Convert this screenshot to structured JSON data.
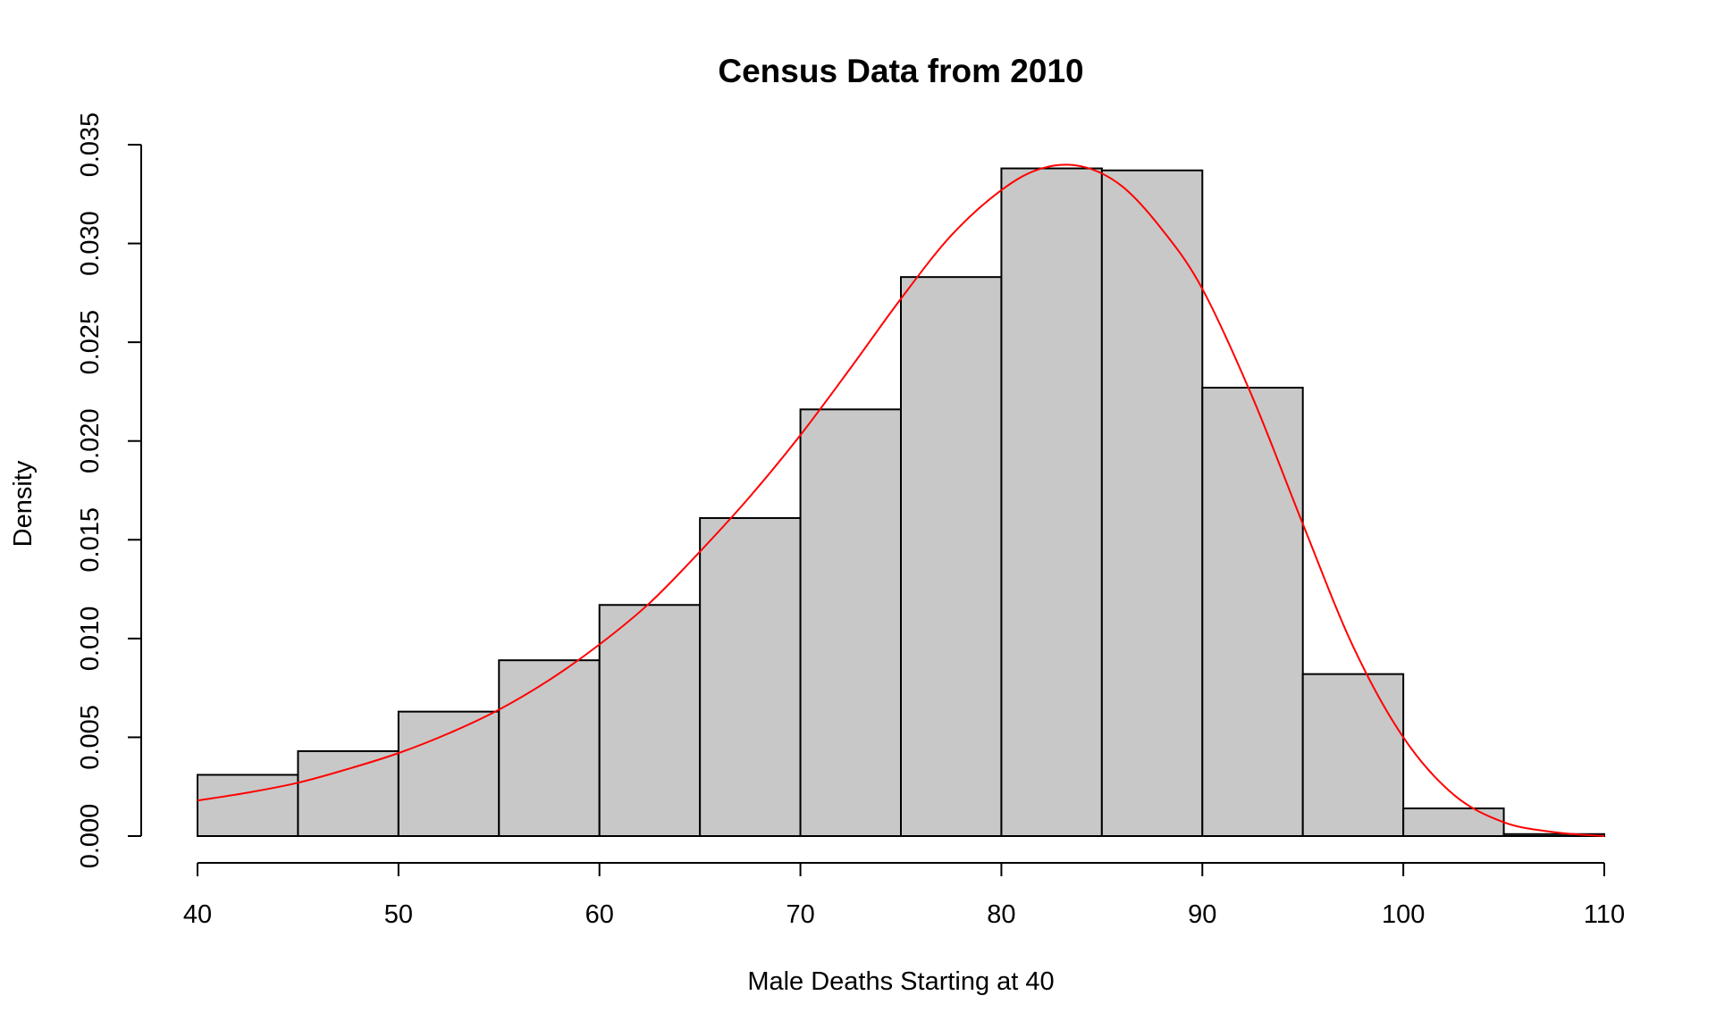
{
  "colors": {
    "bar_fill": "#c8c8c8",
    "bar_stroke": "#000000",
    "curve": "#ff0000",
    "background": "#ffffff"
  },
  "chart_data": {
    "type": "bar",
    "title": "Census Data from 2010",
    "xlabel": "Male Deaths Starting at 40",
    "ylabel": "Density",
    "xlim": [
      40,
      110
    ],
    "ylim": [
      0,
      0.035
    ],
    "x_ticks": [
      40,
      50,
      60,
      70,
      80,
      90,
      100,
      110
    ],
    "x_tick_labels": [
      "40",
      "50",
      "60",
      "70",
      "80",
      "90",
      "100",
      "110"
    ],
    "y_ticks": [
      0,
      0.005,
      0.01,
      0.015,
      0.02,
      0.025,
      0.03,
      0.035
    ],
    "y_tick_labels": [
      "0.000",
      "0.005",
      "0.010",
      "0.015",
      "0.020",
      "0.025",
      "0.030",
      "0.035"
    ],
    "bins": [
      {
        "start": 40,
        "end": 45,
        "density": 0.0031
      },
      {
        "start": 45,
        "end": 50,
        "density": 0.0043
      },
      {
        "start": 50,
        "end": 55,
        "density": 0.0063
      },
      {
        "start": 55,
        "end": 60,
        "density": 0.0089
      },
      {
        "start": 60,
        "end": 65,
        "density": 0.0117
      },
      {
        "start": 65,
        "end": 70,
        "density": 0.0161
      },
      {
        "start": 70,
        "end": 75,
        "density": 0.0216
      },
      {
        "start": 75,
        "end": 80,
        "density": 0.0283
      },
      {
        "start": 80,
        "end": 85,
        "density": 0.0338
      },
      {
        "start": 85,
        "end": 90,
        "density": 0.0337
      },
      {
        "start": 90,
        "end": 95,
        "density": 0.0227
      },
      {
        "start": 95,
        "end": 100,
        "density": 0.0082
      },
      {
        "start": 100,
        "end": 105,
        "density": 0.0014
      },
      {
        "start": 105,
        "end": 110,
        "density": 0.0001
      }
    ],
    "density_curve": {
      "x": [
        40,
        42.5,
        45,
        47.5,
        50,
        52.5,
        55,
        57.5,
        60,
        62.5,
        65,
        67.5,
        70,
        72.5,
        75,
        77.5,
        80,
        82,
        84,
        86,
        88,
        90,
        92.5,
        95,
        97.5,
        100,
        102.5,
        105,
        107.5,
        110
      ],
      "y": [
        0.0018,
        0.0022,
        0.0027,
        0.0034,
        0.0042,
        0.0052,
        0.0064,
        0.0079,
        0.0097,
        0.0118,
        0.0144,
        0.0172,
        0.0203,
        0.0237,
        0.0272,
        0.0304,
        0.0327,
        0.0338,
        0.0339,
        0.0329,
        0.0307,
        0.0277,
        0.0222,
        0.0158,
        0.0096,
        0.005,
        0.0021,
        0.0007,
        0.0002,
        0.0
      ]
    }
  }
}
